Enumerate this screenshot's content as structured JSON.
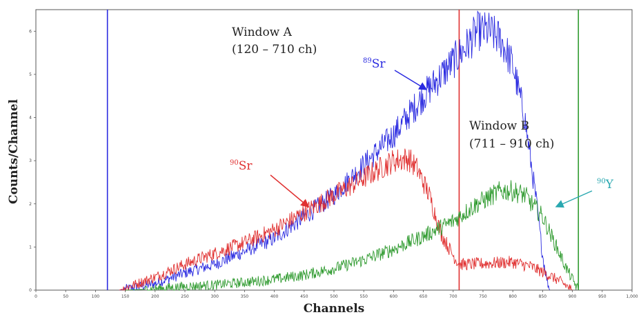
{
  "chart_data": {
    "type": "line",
    "title": "",
    "xlabel": "Channels",
    "ylabel": "Counts/Channel",
    "xlim": [
      0,
      1000
    ],
    "ylim": [
      0,
      6.5
    ],
    "grid": false,
    "x_ticks": [
      "0",
      "50",
      "100",
      "150",
      "200",
      "250",
      "300",
      "350",
      "400",
      "450",
      "500",
      "550",
      "600",
      "650",
      "700",
      "750",
      "800",
      "850",
      "900",
      "950",
      "1,000"
    ],
    "y_ticks": [
      "0",
      "1",
      "2",
      "3",
      "4",
      "5",
      "6"
    ],
    "series": [
      {
        "name": "89Sr",
        "color": "#2a2ae0",
        "x": [
          140,
          200,
          250,
          300,
          350,
          400,
          450,
          500,
          550,
          600,
          650,
          700,
          720,
          740,
          760,
          780,
          800,
          820,
          840,
          850,
          858,
          862
        ],
        "y": [
          0,
          0.15,
          0.4,
          0.6,
          0.9,
          1.2,
          1.7,
          2.2,
          2.9,
          3.6,
          4.5,
          5.3,
          5.6,
          6.0,
          6.0,
          5.8,
          5.2,
          4.0,
          2.0,
          0.8,
          0.2,
          0
        ]
      },
      {
        "name": "90Sr",
        "color": "#e03030",
        "x": [
          140,
          200,
          250,
          300,
          350,
          400,
          450,
          500,
          550,
          600,
          625,
          640,
          660,
          680,
          700,
          710,
          730,
          800,
          830,
          860,
          880,
          900
        ],
        "y": [
          0,
          0.3,
          0.6,
          0.85,
          1.1,
          1.4,
          1.8,
          2.2,
          2.6,
          3.0,
          3.05,
          2.8,
          2.2,
          1.3,
          0.8,
          0.6,
          0.6,
          0.65,
          0.55,
          0.35,
          0.2,
          0
        ]
      },
      {
        "name": "90Y",
        "color": "#2e9a2e",
        "x": [
          150,
          200,
          250,
          300,
          350,
          400,
          450,
          500,
          550,
          600,
          650,
          700,
          740,
          780,
          800,
          820,
          850,
          870,
          890,
          910
        ],
        "y": [
          0,
          0.03,
          0.08,
          0.12,
          0.18,
          0.25,
          0.35,
          0.5,
          0.7,
          0.95,
          1.25,
          1.6,
          2.0,
          2.3,
          2.3,
          2.2,
          1.7,
          1.1,
          0.5,
          0
        ]
      }
    ],
    "window_lines": [
      {
        "x": 120,
        "color": "#2a2ae0"
      },
      {
        "x": 710,
        "color": "#e03030"
      },
      {
        "x": 910,
        "color": "#2e9a2e"
      }
    ],
    "annotations": {
      "window_a_line1": "Window A",
      "window_a_line2": "(120 – 710 ch)",
      "window_b_line1": "Window B",
      "window_b_line2": "(711 – 910 ch)",
      "sr89_mass": "89",
      "sr89_sym": "Sr",
      "sr90_mass": "90",
      "sr90_sym": "Sr",
      "y90_mass": "90",
      "y90_sym": "Y"
    }
  }
}
